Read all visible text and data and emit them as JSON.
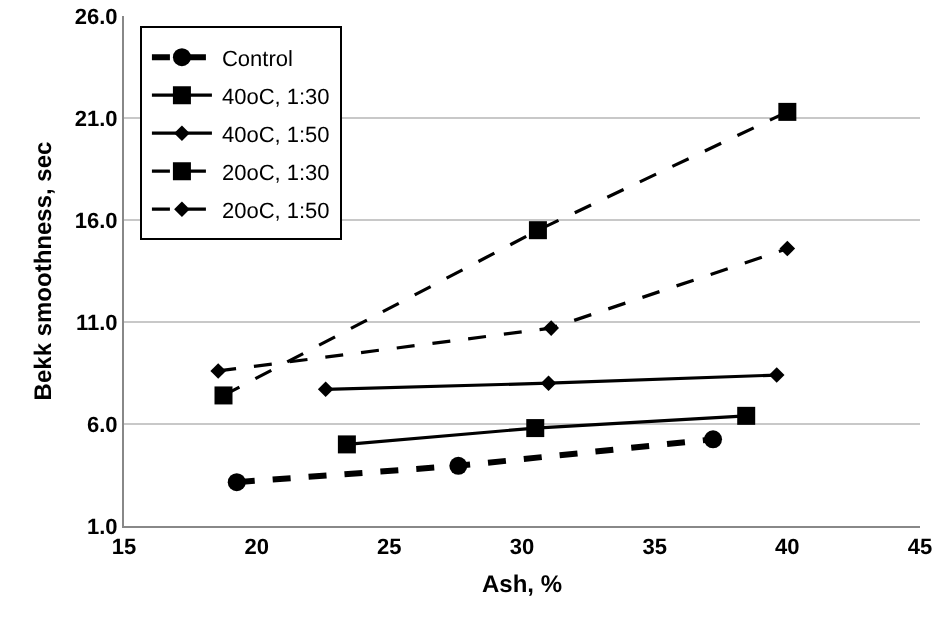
{
  "chart_data": {
    "type": "line",
    "xlabel": "Ash, %",
    "ylabel": "Bekk smoothness, sec",
    "xlim": [
      15,
      45
    ],
    "xticks": [
      15,
      20,
      25,
      30,
      35,
      40,
      45
    ],
    "ylim": [
      1,
      26
    ],
    "yticks": [
      {
        "value": 1,
        "label": "1.0"
      },
      {
        "value": 6,
        "label": "6.0"
      },
      {
        "value": 11,
        "label": "11.0"
      },
      {
        "value": 16,
        "label": "16.0"
      },
      {
        "value": 21,
        "label": "21.0"
      },
      {
        "value": 26,
        "label": "26.0"
      }
    ],
    "grid": "y",
    "legend": "top left",
    "series": [
      {
        "name": "Control",
        "color": "#000000",
        "marker": "circle",
        "line_style": "dashed",
        "x": [
          19.25,
          27.6,
          37.2
        ],
        "values": [
          3.15,
          3.95,
          5.25
        ]
      },
      {
        "name": "40oC, 1:30",
        "color": "#000000",
        "marker": "square",
        "line_style": "solid",
        "x": [
          23.4,
          30.5,
          38.45
        ],
        "values": [
          5.0,
          5.8,
          6.4
        ]
      },
      {
        "name": "40oC, 1:50",
        "color": "#000000",
        "marker": "diamond",
        "line_style": "solid",
        "x": [
          22.6,
          31.0,
          39.6
        ],
        "values": [
          7.7,
          8.0,
          8.4
        ]
      },
      {
        "name": "20oC, 1:30",
        "color": "#000000",
        "marker": "square",
        "line_style": "dashed",
        "x": [
          18.75,
          30.6,
          40.0
        ],
        "values": [
          7.4,
          15.5,
          21.3
        ]
      },
      {
        "name": "20oC, 1:50",
        "color": "#000000",
        "marker": "diamond",
        "line_style": "dashed",
        "x": [
          18.55,
          31.1,
          40.0
        ],
        "values": [
          8.6,
          10.7,
          14.6
        ]
      }
    ]
  }
}
